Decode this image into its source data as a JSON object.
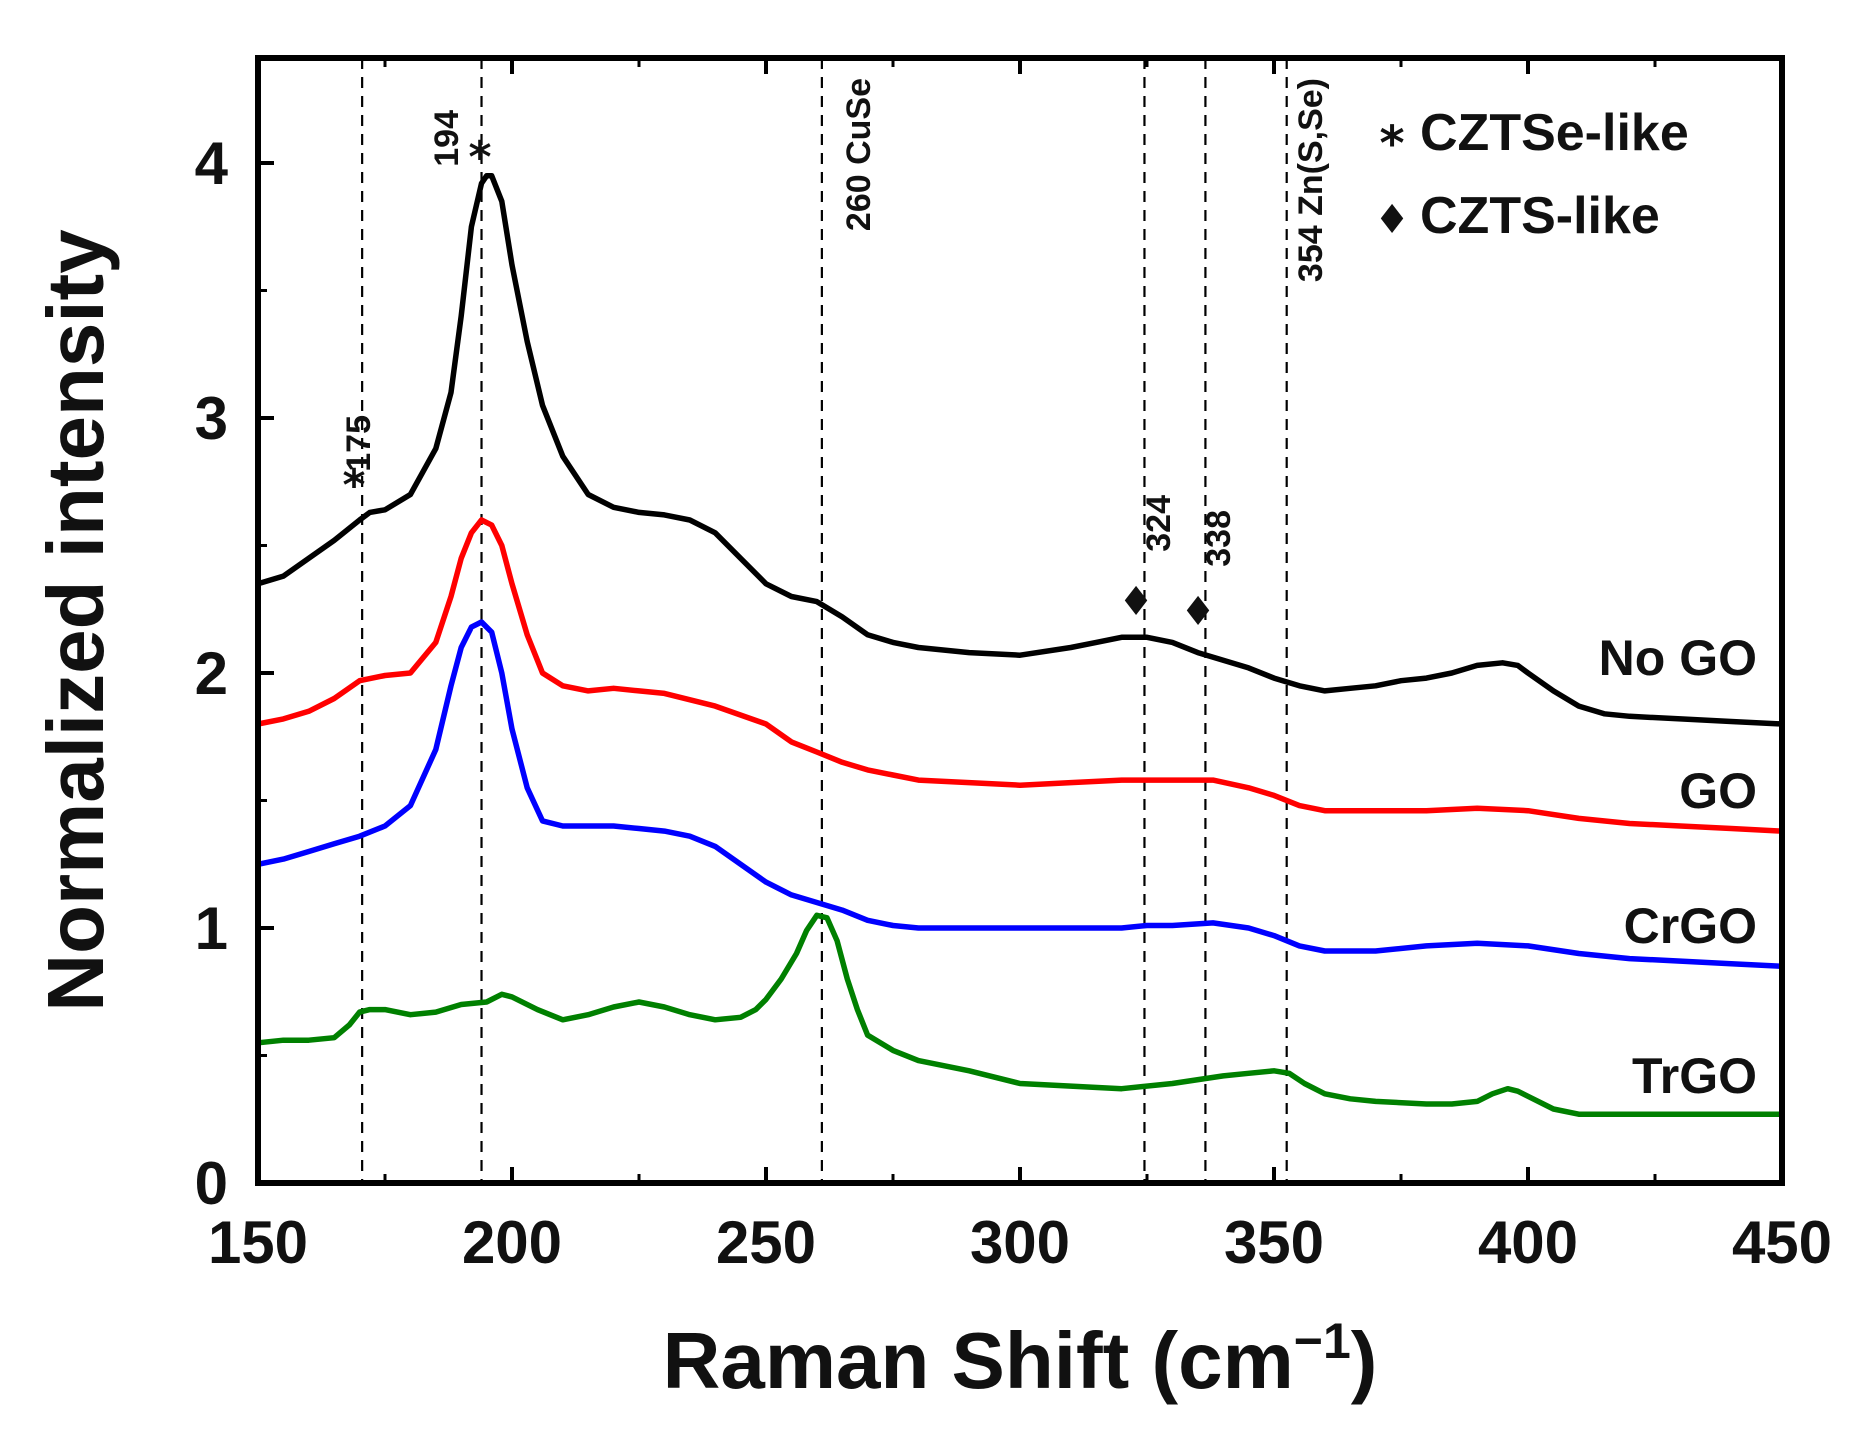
{
  "chart_data": {
    "type": "line",
    "title": "",
    "xlabel": "Raman Shift (cm",
    "xlabel_superscript": "−1",
    "xlabel_close": ")",
    "ylabel": "Normalized intensity",
    "xlim": [
      150,
      450
    ],
    "ylim": [
      0,
      4.4
    ],
    "xticks": [
      150,
      200,
      250,
      300,
      350,
      400,
      450
    ],
    "yticks": [
      0,
      1,
      2,
      3,
      4
    ],
    "grid": false,
    "legend": {
      "placement": "top-right",
      "entries": [
        {
          "symbol": "*",
          "label": "CZTSe-like"
        },
        {
          "symbol": "♦",
          "label": "CZTS-like"
        }
      ]
    },
    "vlines": [
      170.5,
      194,
      261,
      324.5,
      336.5,
      352.5
    ],
    "annotations": [
      {
        "text": "175",
        "x": 175,
        "marker": "*"
      },
      {
        "text": "194",
        "x": 194,
        "marker": "*"
      },
      {
        "text": "260 CuSe",
        "x": 260,
        "marker": ""
      },
      {
        "text": "324",
        "x": 324,
        "marker": "♦"
      },
      {
        "text": "338",
        "x": 338,
        "marker": "♦"
      },
      {
        "text": "354 Zn(S,Se)",
        "x": 354,
        "marker": ""
      }
    ],
    "series": [
      {
        "name": "No GO",
        "color": "#000000",
        "x": [
          150,
          155,
          160,
          165,
          170,
          172,
          175,
          180,
          185,
          188,
          190,
          192,
          194,
          195,
          196,
          198,
          200,
          203,
          206,
          210,
          215,
          220,
          225,
          230,
          235,
          240,
          245,
          250,
          255,
          260,
          265,
          270,
          275,
          280,
          290,
          300,
          310,
          315,
          320,
          325,
          330,
          335,
          340,
          345,
          350,
          355,
          360,
          365,
          370,
          375,
          380,
          385,
          390,
          395,
          398,
          400,
          405,
          410,
          415,
          420,
          430,
          440,
          450
        ],
        "values": [
          2.35,
          2.38,
          2.45,
          2.52,
          2.6,
          2.63,
          2.64,
          2.7,
          2.88,
          3.1,
          3.4,
          3.75,
          3.92,
          3.95,
          3.95,
          3.85,
          3.6,
          3.3,
          3.05,
          2.85,
          2.7,
          2.65,
          2.63,
          2.62,
          2.6,
          2.55,
          2.45,
          2.35,
          2.3,
          2.28,
          2.22,
          2.15,
          2.12,
          2.1,
          2.08,
          2.07,
          2.1,
          2.12,
          2.14,
          2.14,
          2.12,
          2.08,
          2.05,
          2.02,
          1.98,
          1.95,
          1.93,
          1.94,
          1.95,
          1.97,
          1.98,
          2.0,
          2.03,
          2.04,
          2.03,
          2.0,
          1.93,
          1.87,
          1.84,
          1.83,
          1.82,
          1.81,
          1.8
        ]
      },
      {
        "name": "GO",
        "color": "#ff0000",
        "x": [
          150,
          155,
          160,
          165,
          170,
          175,
          180,
          185,
          188,
          190,
          192,
          194,
          196,
          198,
          200,
          203,
          206,
          210,
          215,
          220,
          225,
          230,
          240,
          250,
          255,
          260,
          265,
          270,
          275,
          280,
          290,
          300,
          310,
          320,
          330,
          338,
          345,
          350,
          355,
          360,
          370,
          380,
          390,
          400,
          410,
          420,
          430,
          440,
          450
        ],
        "values": [
          1.8,
          1.82,
          1.85,
          1.9,
          1.97,
          1.99,
          2.0,
          2.12,
          2.3,
          2.45,
          2.55,
          2.6,
          2.58,
          2.5,
          2.35,
          2.15,
          2.0,
          1.95,
          1.93,
          1.94,
          1.93,
          1.92,
          1.87,
          1.8,
          1.73,
          1.69,
          1.65,
          1.62,
          1.6,
          1.58,
          1.57,
          1.56,
          1.57,
          1.58,
          1.58,
          1.58,
          1.55,
          1.52,
          1.48,
          1.46,
          1.46,
          1.46,
          1.47,
          1.46,
          1.43,
          1.41,
          1.4,
          1.39,
          1.38
        ]
      },
      {
        "name": "CrGO",
        "color": "#0000ff",
        "x": [
          150,
          155,
          160,
          165,
          170,
          175,
          180,
          185,
          188,
          190,
          192,
          194,
          196,
          198,
          200,
          203,
          206,
          210,
          215,
          220,
          225,
          230,
          235,
          240,
          245,
          250,
          255,
          260,
          265,
          270,
          275,
          280,
          290,
          300,
          310,
          320,
          325,
          330,
          338,
          345,
          350,
          355,
          360,
          365,
          370,
          380,
          390,
          400,
          410,
          420,
          430,
          440,
          450
        ],
        "values": [
          1.25,
          1.27,
          1.3,
          1.33,
          1.36,
          1.4,
          1.48,
          1.7,
          1.95,
          2.1,
          2.18,
          2.2,
          2.16,
          2.0,
          1.78,
          1.55,
          1.42,
          1.4,
          1.4,
          1.4,
          1.39,
          1.38,
          1.36,
          1.32,
          1.25,
          1.18,
          1.13,
          1.1,
          1.07,
          1.03,
          1.01,
          1.0,
          1.0,
          1.0,
          1.0,
          1.0,
          1.01,
          1.01,
          1.02,
          1.0,
          0.97,
          0.93,
          0.91,
          0.91,
          0.91,
          0.93,
          0.94,
          0.93,
          0.9,
          0.88,
          0.87,
          0.86,
          0.85
        ]
      },
      {
        "name": "TrGO",
        "color": "#008000",
        "x": [
          150,
          155,
          160,
          165,
          168,
          170,
          172,
          175,
          180,
          185,
          190,
          195,
          198,
          200,
          205,
          210,
          215,
          220,
          225,
          230,
          235,
          240,
          245,
          248,
          250,
          253,
          256,
          258,
          260,
          262,
          264,
          266,
          268,
          270,
          275,
          280,
          290,
          300,
          310,
          320,
          330,
          340,
          345,
          350,
          353,
          356,
          360,
          365,
          370,
          380,
          385,
          390,
          393,
          396,
          398,
          400,
          405,
          410,
          420,
          430,
          440,
          450
        ],
        "values": [
          0.55,
          0.56,
          0.56,
          0.57,
          0.62,
          0.67,
          0.68,
          0.68,
          0.66,
          0.67,
          0.7,
          0.71,
          0.74,
          0.73,
          0.68,
          0.64,
          0.66,
          0.69,
          0.71,
          0.69,
          0.66,
          0.64,
          0.65,
          0.68,
          0.72,
          0.8,
          0.9,
          0.99,
          1.05,
          1.04,
          0.95,
          0.8,
          0.68,
          0.58,
          0.52,
          0.48,
          0.44,
          0.39,
          0.38,
          0.37,
          0.39,
          0.42,
          0.43,
          0.44,
          0.43,
          0.39,
          0.35,
          0.33,
          0.32,
          0.31,
          0.31,
          0.32,
          0.35,
          0.37,
          0.36,
          0.34,
          0.29,
          0.27,
          0.27,
          0.27,
          0.27,
          0.27
        ]
      }
    ]
  }
}
